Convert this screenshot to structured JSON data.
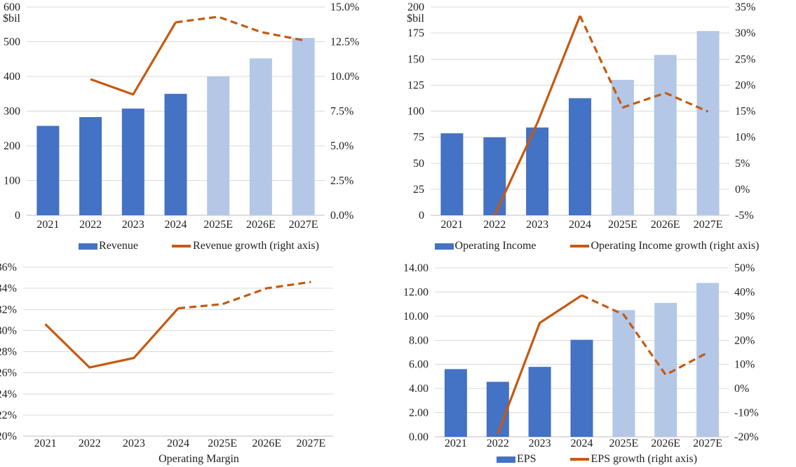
{
  "colors": {
    "bar_actual": "#4472C4",
    "bar_forecast": "#B4C7E7",
    "line": "#C55A11",
    "gridline": "#D9D9D9",
    "axis_line": "#BFBFBF",
    "text": "#1F1F1F"
  },
  "chart_data": [
    {
      "id": "revenue",
      "type": "bar+line",
      "unit_label": "$bil",
      "categories": [
        "2021",
        "2022",
        "2023",
        "2024",
        "2025E",
        "2026E",
        "2027E"
      ],
      "actual_count": 4,
      "bars": {
        "name": "Revenue",
        "values": [
          257.6,
          282.8,
          307.4,
          350.0,
          400,
          452,
          511
        ]
      },
      "line": {
        "name": "Revenue growth (right axis)",
        "axis": "right",
        "values": [
          null,
          9.8,
          8.7,
          13.9,
          14.3,
          13.2,
          12.6
        ]
      },
      "left_axis": {
        "min": 0,
        "max": 600,
        "step": 100,
        "format": "int"
      },
      "right_axis": {
        "min": 0,
        "max": 15,
        "step": 2.5,
        "format": "pct1"
      },
      "legend": [
        {
          "swatch": "bar",
          "label": "Revenue"
        },
        {
          "swatch": "line",
          "label": "Revenue growth (right axis)"
        }
      ]
    },
    {
      "id": "operating-income",
      "type": "bar+line",
      "unit_label": "$bil",
      "categories": [
        "2021",
        "2022",
        "2023",
        "2024",
        "2025E",
        "2026E",
        "2027E"
      ],
      "actual_count": 4,
      "bars": {
        "name": "Operating Income",
        "values": [
          78.7,
          74.8,
          84.3,
          112.4,
          130,
          154,
          177
        ]
      },
      "line": {
        "name": "Operating Income growth (right axis)",
        "axis": "right",
        "values": [
          null,
          -5.0,
          12.7,
          33.3,
          15.7,
          18.5,
          14.9
        ]
      },
      "left_axis": {
        "min": 0,
        "max": 200,
        "step": 25,
        "format": "int"
      },
      "right_axis": {
        "min": -5,
        "max": 35,
        "step": 5,
        "format": "pct0"
      },
      "legend": [
        {
          "swatch": "bar",
          "label": "Operating Income"
        },
        {
          "swatch": "line",
          "label": "Operating Income growth (right axis)"
        }
      ]
    },
    {
      "id": "operating-margin",
      "type": "line",
      "title": "Operating Margin",
      "categories": [
        "2021",
        "2022",
        "2023",
        "2024",
        "2025E",
        "2026E",
        "2027E"
      ],
      "actual_count": 4,
      "line": {
        "name": "Operating Margin",
        "axis": "left",
        "values": [
          30.6,
          26.5,
          27.4,
          32.1,
          32.5,
          34.0,
          34.6
        ]
      },
      "left_axis": {
        "min": 20,
        "max": 36,
        "step": 2,
        "format": "pct0"
      }
    },
    {
      "id": "eps",
      "type": "bar+line",
      "categories": [
        "2021",
        "2022",
        "2023",
        "2024",
        "2025E",
        "2026E",
        "2027E"
      ],
      "actual_count": 4,
      "bars": {
        "name": "EPS",
        "values": [
          5.61,
          4.56,
          5.8,
          8.04,
          10.5,
          11.1,
          12.75
        ]
      },
      "line": {
        "name": "EPS growth (right axis)",
        "axis": "right",
        "values": [
          null,
          -18.7,
          27.2,
          38.6,
          30.6,
          5.7,
          14.9
        ]
      },
      "left_axis": {
        "min": 0,
        "max": 14,
        "step": 2,
        "format": "dec2"
      },
      "right_axis": {
        "min": -20,
        "max": 50,
        "step": 10,
        "format": "pct0"
      },
      "legend": [
        {
          "swatch": "bar",
          "label": "EPS"
        },
        {
          "swatch": "line",
          "label": "EPS growth (right axis)"
        }
      ]
    }
  ]
}
